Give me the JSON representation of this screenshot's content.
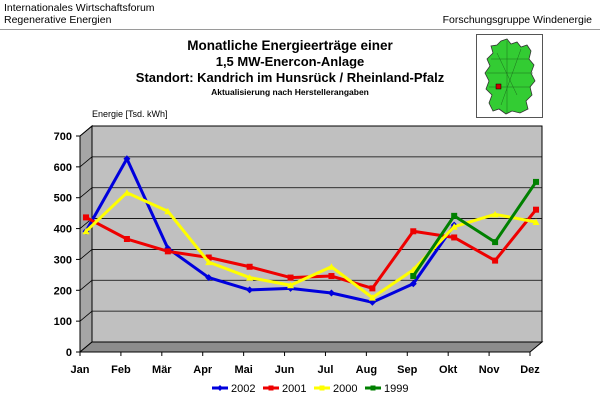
{
  "header": {
    "left_line1": "Internationales Wirtschaftsforum",
    "left_line2": "Regenerative Energien",
    "right": "Forschungsgruppe Windenergie"
  },
  "title": {
    "line1": "Monatliche Energieerträge einer",
    "line2": "1,5 MW-Enercon-Anlage",
    "line3": "Standort: Kandrich im Hunsrück / Rheinland-Pfalz",
    "line4": "Aktualisierung nach Herstellerangaben"
  },
  "map": {
    "icon": "germany-map-icon",
    "fill_color": "#33cc33",
    "marker_color": "#cc0000"
  },
  "chart_data": {
    "type": "line",
    "ylabel": "Energie [Tsd. kWh]",
    "ylim": [
      0,
      700
    ],
    "yticks": [
      0,
      100,
      200,
      300,
      400,
      500,
      600,
      700
    ],
    "categories": [
      "Jan",
      "Feb",
      "Mär",
      "Apr",
      "Mai",
      "Jun",
      "Jul",
      "Aug",
      "Sep",
      "Okt",
      "Nov",
      "Dez"
    ],
    "grid": true,
    "three_d": true,
    "legend_position": "bottom",
    "plot_background": "#c0c0c0",
    "series": [
      {
        "name": "2002",
        "color": "#0000dd",
        "marker": "diamond",
        "values": [
          375,
          610,
          320,
          225,
          185,
          190,
          175,
          145,
          205,
          395,
          null,
          null
        ]
      },
      {
        "name": "2001",
        "color": "#ee0000",
        "marker": "square",
        "values": [
          420,
          350,
          310,
          290,
          260,
          225,
          230,
          190,
          375,
          355,
          280,
          445
        ]
      },
      {
        "name": "2000",
        "color": "#ffff00",
        "marker": "triangle",
        "values": [
          375,
          500,
          440,
          275,
          225,
          200,
          260,
          160,
          250,
          390,
          430,
          405
        ]
      },
      {
        "name": "1999",
        "color": "#008000",
        "marker": "square",
        "values": [
          null,
          null,
          null,
          null,
          null,
          null,
          null,
          null,
          230,
          425,
          340,
          535
        ]
      }
    ]
  }
}
